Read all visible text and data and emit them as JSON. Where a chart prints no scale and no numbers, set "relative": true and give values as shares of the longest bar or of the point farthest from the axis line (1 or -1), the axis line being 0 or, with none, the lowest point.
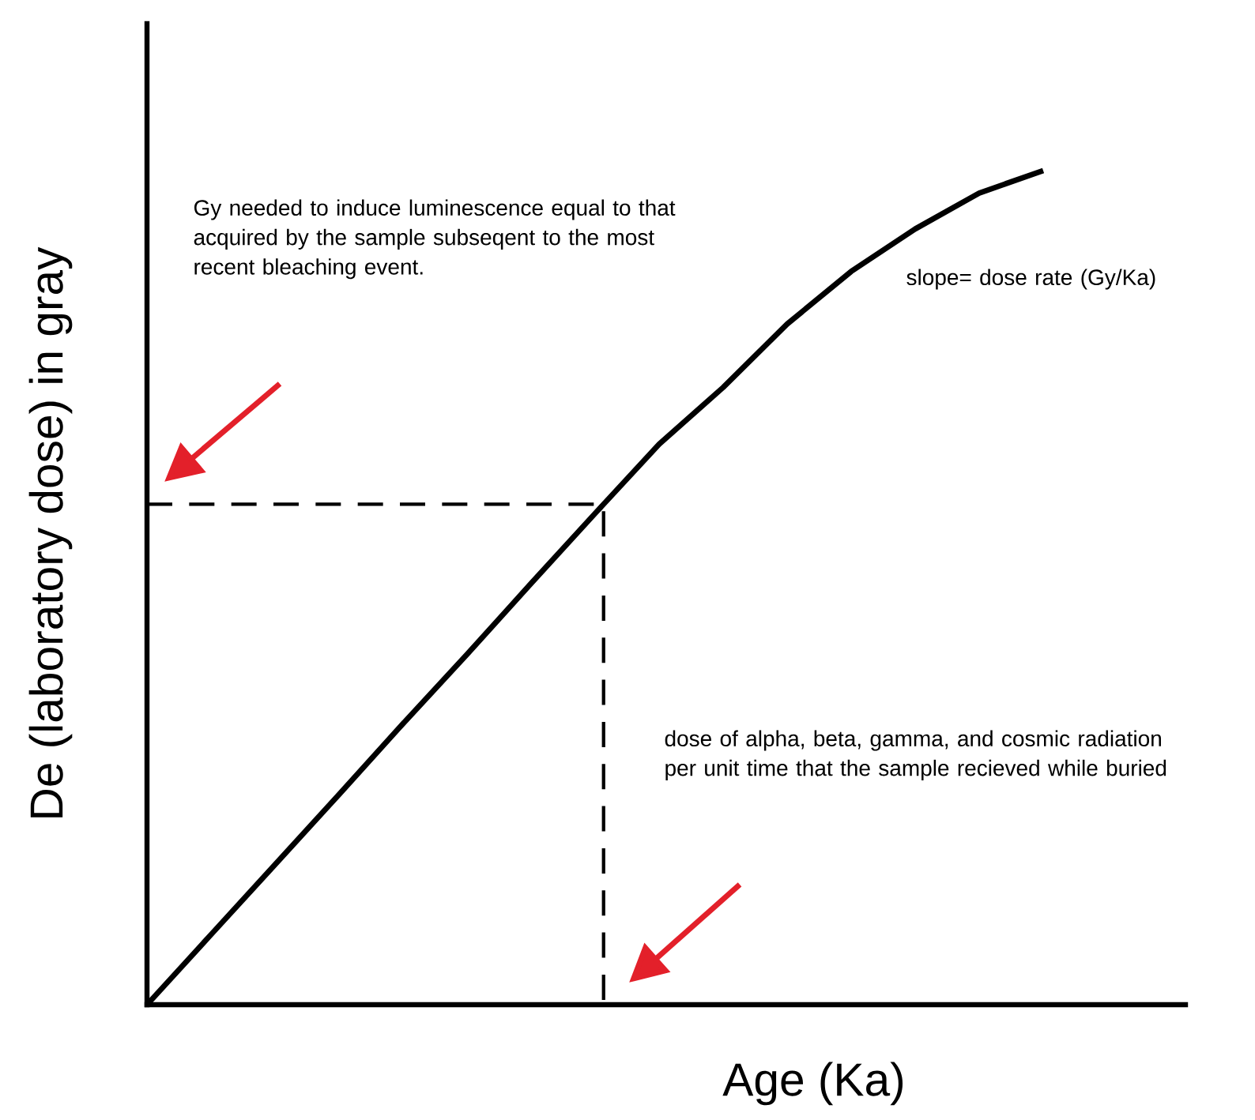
{
  "chart_data": {
    "type": "line",
    "relative": true,
    "xlabel": "Age (Ka)",
    "ylabel": "De (laboratory dose) in gray",
    "categories": [
      null,
      null,
      null,
      null,
      null,
      null,
      null,
      null,
      null,
      null,
      null,
      null,
      null,
      null,
      null
    ],
    "series": [
      {
        "color": "#000000",
        "values": [
          0,
          0.084,
          0.168,
          0.252,
          0.337,
          0.42,
          0.505,
          0.589,
          0.672,
          0.74,
          0.816,
          0.879,
          0.93,
          0.973,
          1.0
        ]
      }
    ],
    "ref_lines": [
      {
        "axis": "y",
        "value": 0.6,
        "line_style": "dashed",
        "color": "#000000"
      }
    ],
    "annotations": [
      "Gy needed to induce luminescence equal to that acquired by the sample subseqent to the most recent bleaching event.",
      "slope= dose rate (Gy/Ka)",
      "dose of alpha, beta, gamma, and cosmic radiation per unit time that the sample recieved while buried"
    ]
  }
}
